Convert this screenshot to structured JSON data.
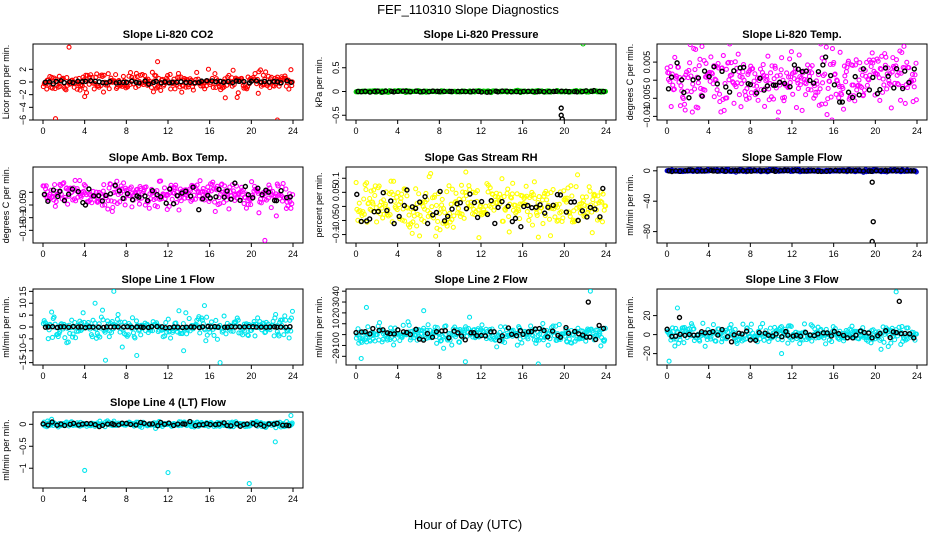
{
  "page": {
    "title": "FEF_110310  Slope Diagnostics",
    "xlabel": "Hour of Day (UTC)"
  },
  "chart_data": [
    {
      "type": "scatter",
      "title": "Slope Li-820 CO2",
      "ylabel": "Licor ppm per min.",
      "xlim": [
        0,
        24
      ],
      "xticks": [
        0,
        4,
        8,
        12,
        16,
        20,
        24
      ],
      "ylim": [
        -6,
        6
      ],
      "yticks": [
        -6,
        -4,
        -2,
        0,
        2
      ],
      "series": [
        {
          "name": "samples",
          "color": "#ff0000",
          "center": 0.0,
          "spread": 0.7,
          "n": 300,
          "outliers": [
            [
              2.5,
              5.5
            ],
            [
              1.2,
              -5.8
            ],
            [
              22.5,
              -6.0
            ],
            [
              11.0,
              3.2
            ],
            [
              4.0,
              -2.3
            ],
            [
              17.5,
              -2.5
            ]
          ]
        },
        {
          "name": "hourly",
          "color": "#000000",
          "center": 0.0,
          "spread": 0.12,
          "n": 60,
          "outliers": []
        }
      ]
    },
    {
      "type": "scatter",
      "title": "Slope Li-820 Pressure",
      "ylabel": "kPa per min.",
      "xlim": [
        0,
        24
      ],
      "xticks": [
        0,
        4,
        8,
        12,
        16,
        20,
        24
      ],
      "ylim": [
        -0.6,
        1.0
      ],
      "yticks": [
        -0.5,
        0.0,
        0.5
      ],
      "series": [
        {
          "name": "samples",
          "color": "#00cc00",
          "center": 0.0,
          "spread": 0.008,
          "n": 300,
          "outliers": [
            [
              21.8,
              1.0
            ],
            [
              0.2,
              -0.01
            ]
          ]
        },
        {
          "name": "hourly",
          "color": "#000000",
          "center": 0.0,
          "spread": 0.006,
          "n": 60,
          "outliers": [
            [
              19.7,
              -0.35
            ],
            [
              19.7,
              -0.5
            ],
            [
              19.8,
              -0.58
            ]
          ]
        }
      ]
    },
    {
      "type": "scatter",
      "title": "Slope Li-820 Temp.",
      "ylabel": "degrees C per min.",
      "xlim": [
        0,
        24
      ],
      "xticks": [
        0,
        4,
        8,
        12,
        16,
        20,
        24
      ],
      "ylim": [
        -0.011,
        0.01
      ],
      "yticks": [
        -0.01,
        -0.005,
        0.0,
        0.005
      ],
      "series": [
        {
          "name": "samples",
          "color": "#ff00ff",
          "center": 0.0,
          "spread": 0.0042,
          "n": 360,
          "outliers": []
        },
        {
          "name": "hourly",
          "color": "#000000",
          "center": 0.0,
          "spread": 0.003,
          "n": 60,
          "outliers": []
        }
      ]
    },
    {
      "type": "scatter",
      "title": "Slope Amb. Box Temp.",
      "ylabel": "degrees C per min.",
      "xlim": [
        0,
        24
      ],
      "xticks": [
        0,
        4,
        8,
        12,
        16,
        20,
        24
      ],
      "ylim": [
        -0.2,
        0.1
      ],
      "yticks": [
        -0.15,
        -0.1,
        -0.05,
        0.0
      ],
      "series": [
        {
          "name": "samples",
          "color": "#ff00ff",
          "center": -0.01,
          "spread": 0.025,
          "n": 330,
          "outliers": [
            [
              21.3,
              -0.19
            ]
          ]
        },
        {
          "name": "hourly",
          "color": "#000000",
          "center": -0.01,
          "spread": 0.02,
          "n": 60,
          "outliers": []
        }
      ]
    },
    {
      "type": "scatter",
      "title": "Slope Gas Stream RH",
      "ylabel": "percent per min.",
      "xlim": [
        0,
        24
      ],
      "xticks": [
        0,
        4,
        8,
        12,
        16,
        20,
        24
      ],
      "ylim": [
        -0.13,
        0.14
      ],
      "yticks": [
        -0.1,
        -0.05,
        0.0,
        0.05,
        0.1
      ],
      "series": [
        {
          "name": "samples",
          "color": "#ffff00",
          "center": 0.0,
          "spread": 0.045,
          "n": 340,
          "outliers": []
        },
        {
          "name": "hourly",
          "color": "#000000",
          "center": -0.01,
          "spread": 0.035,
          "n": 60,
          "outliers": []
        }
      ]
    },
    {
      "type": "scatter",
      "title": "Slope Sample Flow",
      "ylabel": "ml/min per min.",
      "xlim": [
        0,
        24
      ],
      "xticks": [
        0,
        4,
        8,
        12,
        16,
        20,
        24
      ],
      "ylim": [
        -95,
        5
      ],
      "yticks": [
        -80,
        -40,
        0
      ],
      "series": [
        {
          "name": "samples",
          "color": "#0000cc",
          "center": 0.0,
          "spread": 0.6,
          "n": 320,
          "outliers": []
        },
        {
          "name": "hourly",
          "color": "#000000",
          "center": 0.0,
          "spread": 0.4,
          "n": 60,
          "outliers": [
            [
              19.7,
              -15
            ],
            [
              19.8,
              -67
            ],
            [
              19.7,
              -93
            ]
          ]
        }
      ]
    },
    {
      "type": "scatter",
      "title": "Slope Line 1 Flow",
      "ylabel": "ml/min per min.",
      "xlim": [
        0,
        24
      ],
      "xticks": [
        0,
        4,
        8,
        12,
        16,
        20,
        24
      ],
      "ylim": [
        -16,
        16
      ],
      "yticks": [
        -15,
        -10,
        -5,
        0,
        5,
        10,
        15
      ],
      "series": [
        {
          "name": "samples",
          "color": "#00e5ee",
          "center": 0.0,
          "spread": 2.5,
          "n": 300,
          "outliers": [
            [
              6.8,
              15
            ],
            [
              6.0,
              -14
            ],
            [
              17.0,
              -15
            ],
            [
              5.0,
              10
            ],
            [
              9.0,
              -12
            ],
            [
              13.5,
              -10
            ],
            [
              15.5,
              9
            ]
          ]
        },
        {
          "name": "hourly",
          "color": "#000000",
          "center": 0.0,
          "spread": 0.1,
          "n": 60,
          "outliers": []
        }
      ]
    },
    {
      "type": "scatter",
      "title": "Slope Line 2 Flow",
      "ylabel": "ml/min per min.",
      "xlim": [
        0,
        24
      ],
      "xticks": [
        0,
        4,
        8,
        12,
        16,
        20,
        24
      ],
      "ylim": [
        -28,
        42
      ],
      "yticks": [
        -20,
        -10,
        0,
        10,
        20,
        30,
        40
      ],
      "series": [
        {
          "name": "samples",
          "color": "#00e5ee",
          "center": 0.0,
          "spread": 4.5,
          "n": 320,
          "outliers": [
            [
              22.5,
              40
            ],
            [
              1.0,
              25
            ],
            [
              0.5,
              -22
            ],
            [
              10.5,
              -25
            ],
            [
              17.5,
              -27
            ],
            [
              6.5,
              22
            ]
          ]
        },
        {
          "name": "hourly",
          "color": "#000000",
          "center": 1.0,
          "spread": 3.0,
          "n": 60,
          "outliers": [
            [
              22.3,
              30
            ]
          ]
        }
      ]
    },
    {
      "type": "scatter",
      "title": "Slope Line 3 Flow",
      "ylabel": "ml/min per min.",
      "xlim": [
        0,
        24
      ],
      "xticks": [
        0,
        4,
        8,
        12,
        16,
        20,
        24
      ],
      "ylim": [
        -32,
        48
      ],
      "yticks": [
        -20,
        0,
        20
      ],
      "series": [
        {
          "name": "samples",
          "color": "#00e5ee",
          "center": 0.0,
          "spread": 5.0,
          "n": 330,
          "outliers": [
            [
              22.0,
              45
            ],
            [
              1.0,
              28
            ],
            [
              0.2,
              -28
            ],
            [
              11.0,
              -20
            ]
          ]
        },
        {
          "name": "hourly",
          "color": "#000000",
          "center": 0.0,
          "spread": 2.5,
          "n": 60,
          "outliers": [
            [
              22.3,
              35
            ],
            [
              1.2,
              18
            ]
          ]
        }
      ]
    },
    {
      "type": "scatter",
      "title": "Slope Line 4 (LT) Flow",
      "ylabel": "ml/min per min.",
      "xlim": [
        0,
        24
      ],
      "xticks": [
        0,
        4,
        8,
        12,
        16,
        20,
        24
      ],
      "ylim": [
        -1.45,
        0.28
      ],
      "yticks": [
        -1.0,
        -0.5,
        0.0
      ],
      "series": [
        {
          "name": "samples",
          "color": "#00e5ee",
          "center": 0.0,
          "spread": 0.03,
          "n": 300,
          "outliers": [
            [
              4.0,
              -1.05
            ],
            [
              12.0,
              -1.1
            ],
            [
              19.8,
              -1.35
            ],
            [
              23.8,
              0.2
            ],
            [
              22.3,
              -0.4
            ]
          ]
        },
        {
          "name": "hourly",
          "color": "#000000",
          "center": 0.0,
          "spread": 0.025,
          "n": 60,
          "outliers": []
        }
      ]
    }
  ]
}
